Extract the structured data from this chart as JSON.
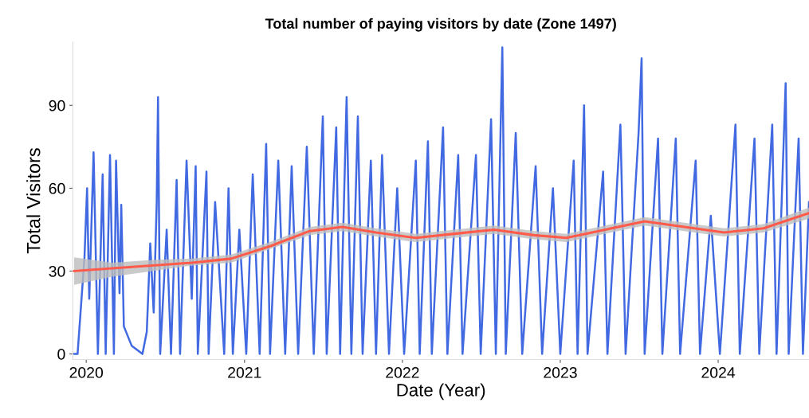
{
  "chart_data": {
    "type": "line",
    "title": "Total number of paying visitors by date (Zone 1497)",
    "xlabel": "Date (Year)",
    "ylabel": "Total Visitors",
    "xticks": [
      {
        "value": "2020-01-01",
        "label": "2020"
      },
      {
        "value": "2021-01-01",
        "label": "2021"
      },
      {
        "value": "2022-01-01",
        "label": "2022"
      },
      {
        "value": "2023-01-01",
        "label": "2023"
      },
      {
        "value": "2024-01-01",
        "label": "2024"
      }
    ],
    "xlim": [
      "2019-12-01",
      "2024-07-29"
    ],
    "ylim": [
      -2,
      113
    ],
    "yticks": [
      0,
      30,
      60,
      90
    ],
    "grid": false,
    "legend": false,
    "line_style": "solid",
    "marker": "none",
    "series": [
      {
        "color": "#4169e1",
        "x": [
          "2019-12-04",
          "2019-12-12",
          "2019-12-28",
          "2020-01-03",
          "2020-01-08",
          "2020-01-18",
          "2020-01-28",
          "2020-02-08",
          "2020-02-15",
          "2020-02-25",
          "2020-03-05",
          "2020-03-10",
          "2020-03-18",
          "2020-03-22",
          "2020-03-28",
          "2020-04-15",
          "2020-05-10",
          "2020-05-20",
          "2020-05-28",
          "2020-06-05",
          "2020-06-12",
          "2020-06-15",
          "2020-06-20",
          "2020-07-05",
          "2020-07-15",
          "2020-07-28",
          "2020-08-05",
          "2020-08-20",
          "2020-09-01",
          "2020-09-10",
          "2020-09-15",
          "2020-10-05",
          "2020-10-10",
          "2020-10-25",
          "2020-11-15",
          "2020-11-25",
          "2020-12-05",
          "2020-12-20",
          "2021-01-05",
          "2021-01-20",
          "2021-02-05",
          "2021-02-20",
          "2021-03-01",
          "2021-03-20",
          "2021-04-05",
          "2021-04-20",
          "2021-05-05",
          "2021-05-25",
          "2021-06-10",
          "2021-07-01",
          "2021-07-10",
          "2021-08-01",
          "2021-08-10",
          "2021-08-25",
          "2021-09-05",
          "2021-09-20",
          "2021-10-01",
          "2021-10-20",
          "2021-11-01",
          "2021-11-15",
          "2021-12-01",
          "2021-12-20",
          "2022-01-05",
          "2022-02-01",
          "2022-02-10",
          "2022-03-01",
          "2022-03-10",
          "2022-04-05",
          "2022-04-15",
          "2022-05-10",
          "2022-05-20",
          "2022-06-20",
          "2022-07-01",
          "2022-07-25",
          "2022-08-05",
          "2022-08-20",
          "2022-08-28",
          "2022-09-20",
          "2022-10-05",
          "2022-11-05",
          "2022-11-20",
          "2022-12-15",
          "2023-01-01",
          "2023-02-01",
          "2023-02-10",
          "2023-02-25",
          "2023-03-05",
          "2023-04-10",
          "2023-04-20",
          "2023-05-20",
          "2023-06-01",
          "2023-07-01",
          "2023-07-08",
          "2023-07-15",
          "2023-08-15",
          "2023-08-25",
          "2023-09-25",
          "2023-10-05",
          "2023-11-10",
          "2023-11-20",
          "2023-12-15",
          "2024-01-05",
          "2024-02-10",
          "2024-02-20",
          "2024-03-25",
          "2024-04-05",
          "2024-05-05",
          "2024-05-15",
          "2024-06-05",
          "2024-06-12",
          "2024-07-05",
          "2024-07-15",
          "2024-07-29"
        ],
        "values": [
          0,
          0,
          35,
          60,
          20,
          73,
          0,
          65,
          0,
          72,
          0,
          70,
          22,
          54,
          10,
          3,
          0,
          8,
          40,
          15,
          55,
          93,
          0,
          45,
          0,
          63,
          0,
          70,
          20,
          68,
          0,
          66,
          0,
          55,
          0,
          60,
          0,
          45,
          0,
          65,
          0,
          76,
          0,
          70,
          0,
          68,
          0,
          75,
          0,
          86,
          0,
          82,
          0,
          93,
          0,
          86,
          0,
          70,
          0,
          72,
          0,
          60,
          0,
          70,
          0,
          77,
          0,
          82,
          0,
          72,
          0,
          72,
          0,
          85,
          0,
          111,
          0,
          80,
          0,
          68,
          0,
          60,
          0,
          70,
          0,
          90,
          0,
          66,
          0,
          83,
          0,
          80,
          107,
          0,
          78,
          0,
          78,
          0,
          70,
          0,
          50,
          0,
          83,
          0,
          78,
          0,
          83,
          0,
          98,
          0,
          78,
          0,
          55
        ]
      },
      {
        "color": "#ff5a4a",
        "x": [
          "2019-12-04",
          "2020-03-01",
          "2020-06-01",
          "2020-09-01",
          "2020-12-01",
          "2021-03-01",
          "2021-06-01",
          "2021-08-15",
          "2021-11-01",
          "2022-02-01",
          "2022-05-01",
          "2022-08-01",
          "2022-11-01",
          "2023-01-15",
          "2023-04-15",
          "2023-07-15",
          "2023-10-15",
          "2024-01-15",
          "2024-04-15",
          "2024-07-29"
        ],
        "values": [
          30,
          31,
          32,
          33,
          34.5,
          39,
          44.5,
          46,
          44,
          42,
          43.5,
          45,
          43,
          42,
          45,
          48,
          46,
          44,
          45.5,
          51
        ],
        "lower": [
          25,
          28,
          30,
          32,
          33,
          38,
          43,
          44.5,
          42.5,
          40.5,
          42,
          43.5,
          41.5,
          40.5,
          43.5,
          46.5,
          44.5,
          42.5,
          44,
          49
        ],
        "upper": [
          35,
          33,
          34,
          34.5,
          36,
          40.5,
          46,
          47.5,
          45.5,
          43.5,
          45,
          46.5,
          44.5,
          43.5,
          46.5,
          49.5,
          47.5,
          45.5,
          47,
          53
        ]
      }
    ]
  }
}
